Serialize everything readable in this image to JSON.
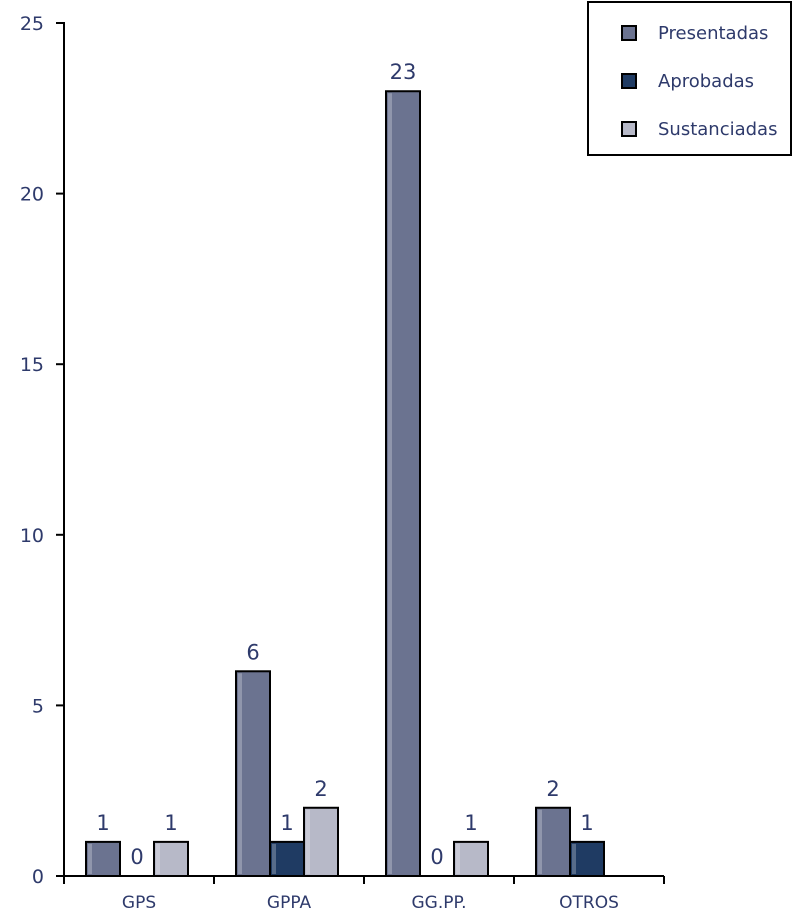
{
  "chart_data": {
    "type": "bar",
    "categories": [
      "GPS",
      "GPPA",
      "GG.PP.",
      "OTROS"
    ],
    "series": [
      {
        "name": "Presentadas",
        "values": [
          1,
          6,
          23,
          2
        ],
        "labels": [
          "1",
          "6",
          "23",
          "2"
        ],
        "color": "#6b7390"
      },
      {
        "name": "Aprobadas",
        "values": [
          0,
          1,
          0,
          1
        ],
        "labels": [
          "0",
          "1",
          "0",
          "1"
        ],
        "color": "#1f3b63"
      },
      {
        "name": "Sustanciadas",
        "values": [
          1,
          2,
          1,
          0
        ],
        "labels": [
          "1",
          "2",
          "1",
          ""
        ],
        "color": "#b7b9c8"
      }
    ],
    "yticks": [
      "0",
      "5",
      "10",
      "15",
      "20",
      "25"
    ],
    "ylim": [
      0,
      25
    ],
    "grid": false,
    "legend_position": "top-right",
    "colors": {
      "text": "#2e3a6b",
      "axis": "#000000"
    }
  }
}
